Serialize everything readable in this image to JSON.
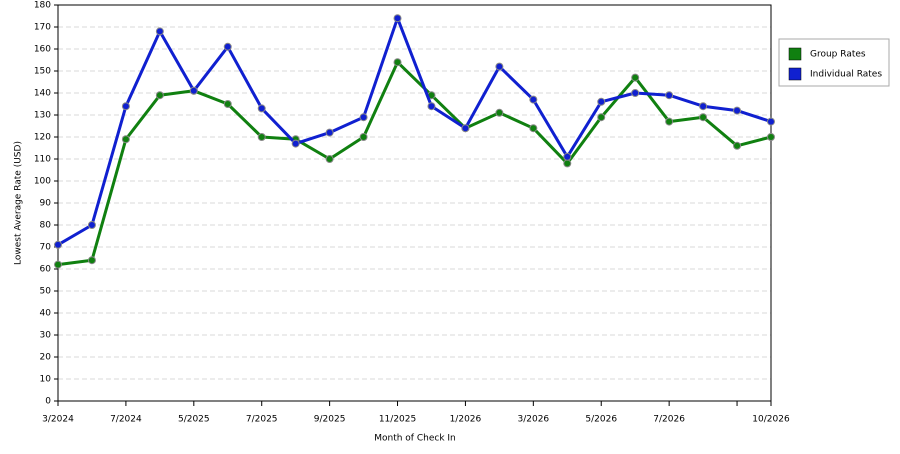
{
  "chart_data": {
    "type": "line",
    "x_label": "Month of Check In",
    "y_label": "Lowest Average Rate (USD)",
    "categories": [
      "3/2024",
      null,
      "7/2024",
      null,
      "5/2025",
      null,
      "7/2025",
      null,
      "9/2025",
      null,
      "11/2025",
      null,
      "1/2026",
      null,
      "3/2026",
      null,
      "5/2026",
      null,
      "7/2026",
      null,
      null,
      "10/2026"
    ],
    "series": [
      {
        "name": "Group Rates",
        "color": "#108010",
        "values": [
          62,
          64,
          119,
          139,
          141,
          135,
          120,
          119,
          110,
          120,
          154,
          139,
          124,
          131,
          124,
          108,
          129,
          147,
          127,
          129,
          116,
          120
        ]
      },
      {
        "name": "Individual Rates",
        "color": "#1020d0",
        "values": [
          71,
          80,
          134,
          168,
          141,
          161,
          133,
          117,
          122,
          129,
          174,
          134,
          124,
          152,
          137,
          111,
          136,
          140,
          139,
          134,
          132,
          127
        ]
      }
    ],
    "ylim": [
      0,
      180
    ],
    "yticks": [
      0,
      10,
      20,
      30,
      40,
      50,
      60,
      70,
      80,
      90,
      100,
      110,
      120,
      130,
      140,
      150,
      160,
      170,
      180
    ],
    "grid": true,
    "legend": "right"
  }
}
